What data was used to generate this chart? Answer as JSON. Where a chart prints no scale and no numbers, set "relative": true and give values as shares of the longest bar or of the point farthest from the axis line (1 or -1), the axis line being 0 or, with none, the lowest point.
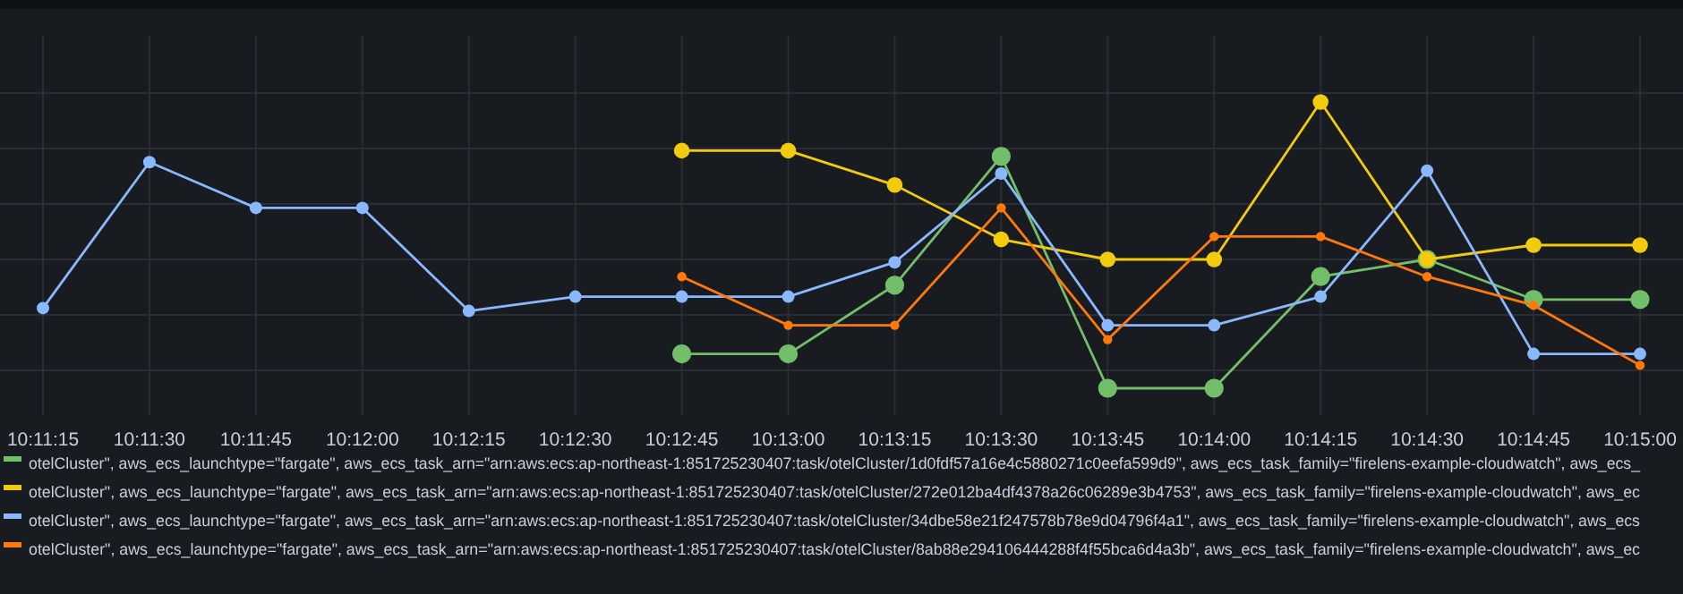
{
  "chart_data": {
    "type": "line",
    "relative": true,
    "grid": true,
    "legend": "bottom",
    "marker": "circle",
    "line_style": "solid",
    "categories": [
      "10:11:15",
      "10:11:30",
      "10:11:45",
      "10:12:00",
      "10:12:15",
      "10:12:30",
      "10:12:45",
      "10:13:00",
      "10:13:15",
      "10:13:30",
      "10:13:45",
      "10:14:00",
      "10:14:15",
      "10:14:30",
      "10:14:45",
      "10:15:00"
    ],
    "series": [
      {
        "name": "otelCluster\", aws_ecs_launchtype=\"fargate\", aws_ecs_task_arn=\"arn:aws:ecs:ap-northeast-1:851725230407:task/otelCluster/1d0fdf57a16e4c5880271c0eefa599d9\", aws_ecs_task_family=\"firelens-example-cloudwatch\", aws_ecs_",
        "color": "#73bf69",
        "values": [
          null,
          null,
          null,
          null,
          null,
          null,
          0.12,
          0.12,
          0.36,
          0.81,
          0,
          0,
          0.39,
          0.45,
          0.31,
          0.31
        ]
      },
      {
        "name": "otelCluster\", aws_ecs_launchtype=\"fargate\", aws_ecs_task_arn=\"arn:aws:ecs:ap-northeast-1:851725230407:task/otelCluster/272e012ba4df4378a26c06289e3b4753\", aws_ecs_task_family=\"firelens-example-cloudwatch\", aws_ec",
        "color": "#f2cc0c",
        "values": [
          null,
          null,
          null,
          null,
          null,
          null,
          0.83,
          0.83,
          0.71,
          0.52,
          0.45,
          0.45,
          1,
          0.45,
          0.5,
          0.5
        ]
      },
      {
        "name": "otelCluster\", aws_ecs_launchtype=\"fargate\", aws_ecs_task_arn=\"arn:aws:ecs:ap-northeast-1:851725230407:task/otelCluster/34dbe58e21f247578b78e9d04796f4a1\", aws_ecs_task_family=\"firelens-example-cloudwatch\", aws_ecs",
        "color": "#8ab8ff",
        "values": [
          0.28,
          0.79,
          0.63,
          0.63,
          0.27,
          0.32,
          0.32,
          0.32,
          0.44,
          0.75,
          0.22,
          0.22,
          0.32,
          0.76,
          0.12,
          0.12
        ]
      },
      {
        "name": "otelCluster\", aws_ecs_launchtype=\"fargate\", aws_ecs_task_arn=\"arn:aws:ecs:ap-northeast-1:851725230407:task/otelCluster/8ab88e294106444288f4f55bca6d4a3b\", aws_ecs_task_family=\"firelens-example-cloudwatch\", aws_ec",
        "color": "#ff780a",
        "values": [
          null,
          null,
          null,
          null,
          null,
          null,
          0.39,
          0.22,
          0.22,
          0.63,
          0.17,
          0.53,
          0.53,
          0.39,
          0.29,
          0.08
        ]
      }
    ]
  }
}
